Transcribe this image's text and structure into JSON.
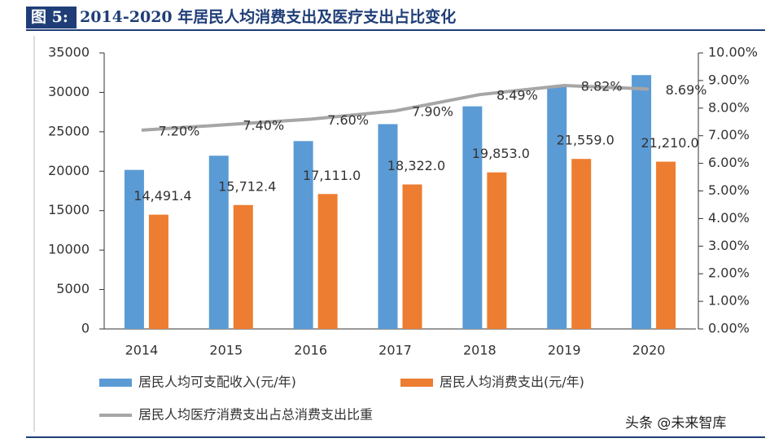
{
  "chart_data": {
    "type": "bar_line",
    "figure_label": "图 5:",
    "title": "2014-2020 年居民人均消费支出及医疗支出占比变化",
    "categories": [
      "2014",
      "2015",
      "2016",
      "2017",
      "2018",
      "2019",
      "2020"
    ],
    "series": [
      {
        "name": "居民人均可支配收入(元/年)",
        "type": "bar",
        "color": "#5b9bd5",
        "values": [
          20167,
          21966,
          23821,
          25974,
          28228,
          30733,
          32189
        ]
      },
      {
        "name": "居民人均消费支出(元/年)",
        "type": "bar",
        "color": "#ed7d31",
        "values": [
          14491.4,
          15712.4,
          17111.0,
          18322.0,
          19853.0,
          21559.0,
          21210.0
        ],
        "value_labels": [
          "14,491.4",
          "15,712.4",
          "17,111.0",
          "18,322.0",
          "19,853.0",
          "21,559.0",
          "21,210.0"
        ]
      },
      {
        "name": "居民人均医疗消费支出占总消费支出比重",
        "type": "line",
        "axis": "y2",
        "color": "#a6a6a6",
        "values": [
          7.2,
          7.4,
          7.6,
          7.9,
          8.49,
          8.82,
          8.69
        ],
        "value_labels": [
          "7.20%",
          "7.40%",
          "7.60%",
          "7.90%",
          "8.49%",
          "8.82%",
          "8.69%"
        ]
      }
    ],
    "ylim": [
      0,
      35000
    ],
    "yticks": [
      0,
      5000,
      10000,
      15000,
      20000,
      25000,
      30000,
      35000
    ],
    "y2lim": [
      0,
      10
    ],
    "y2ticks": [
      {
        "value": 0,
        "label": "0.00%"
      },
      {
        "value": 1,
        "label": "1.00%"
      },
      {
        "value": 2,
        "label": "2.00%"
      },
      {
        "value": 3,
        "label": "3.00%"
      },
      {
        "value": 4,
        "label": "4.00%"
      },
      {
        "value": 5,
        "label": "5.00%"
      },
      {
        "value": 6,
        "label": "6.00%"
      },
      {
        "value": 7,
        "label": "7.00%"
      },
      {
        "value": 8,
        "label": "8.00%"
      },
      {
        "value": 9,
        "label": "9.00%"
      },
      {
        "value": 10,
        "label": "10.00%"
      }
    ],
    "watermark": "头条 @未来智库"
  }
}
